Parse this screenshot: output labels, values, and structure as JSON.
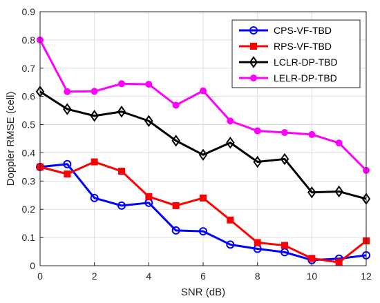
{
  "chart_data": {
    "type": "line",
    "title": "",
    "xlabel": "SNR (dB)",
    "ylabel": "Doppler RMSE (cell)",
    "xlim": [
      0,
      12
    ],
    "ylim": [
      0,
      0.9
    ],
    "xticks": [
      0,
      2,
      4,
      6,
      8,
      10,
      12
    ],
    "yticks": [
      0,
      0.1,
      0.2,
      0.3,
      0.4,
      0.5,
      0.6,
      0.7,
      0.8,
      0.9
    ],
    "grid": true,
    "legend_position": "top-right",
    "x": [
      0,
      1,
      2,
      3,
      4,
      5,
      6,
      7,
      8,
      9,
      10,
      11,
      12
    ],
    "series": [
      {
        "name": "CPS-VF-TBD",
        "color": "#0000ff",
        "marker": "circle",
        "values": [
          0.35,
          0.36,
          0.24,
          0.213,
          0.223,
          0.125,
          0.122,
          0.075,
          0.06,
          0.048,
          0.02,
          0.025,
          0.037
        ]
      },
      {
        "name": "RPS-VF-TBD",
        "color": "#ff0000",
        "marker": "square",
        "values": [
          0.35,
          0.325,
          0.368,
          0.335,
          0.245,
          0.213,
          0.24,
          0.162,
          0.082,
          0.072,
          0.026,
          0.012,
          0.088
        ]
      },
      {
        "name": "LCLR-DP-TBD",
        "color": "#000000",
        "marker": "diamond",
        "values": [
          0.617,
          0.555,
          0.531,
          0.546,
          0.513,
          0.443,
          0.393,
          0.436,
          0.368,
          0.378,
          0.26,
          0.263,
          0.237
        ]
      },
      {
        "name": "LELR-DP-TBD",
        "color": "#ff00ff",
        "marker": "circle-filled",
        "values": [
          0.8,
          0.617,
          0.618,
          0.645,
          0.643,
          0.569,
          0.62,
          0.513,
          0.478,
          0.472,
          0.465,
          0.435,
          0.338
        ]
      }
    ]
  }
}
